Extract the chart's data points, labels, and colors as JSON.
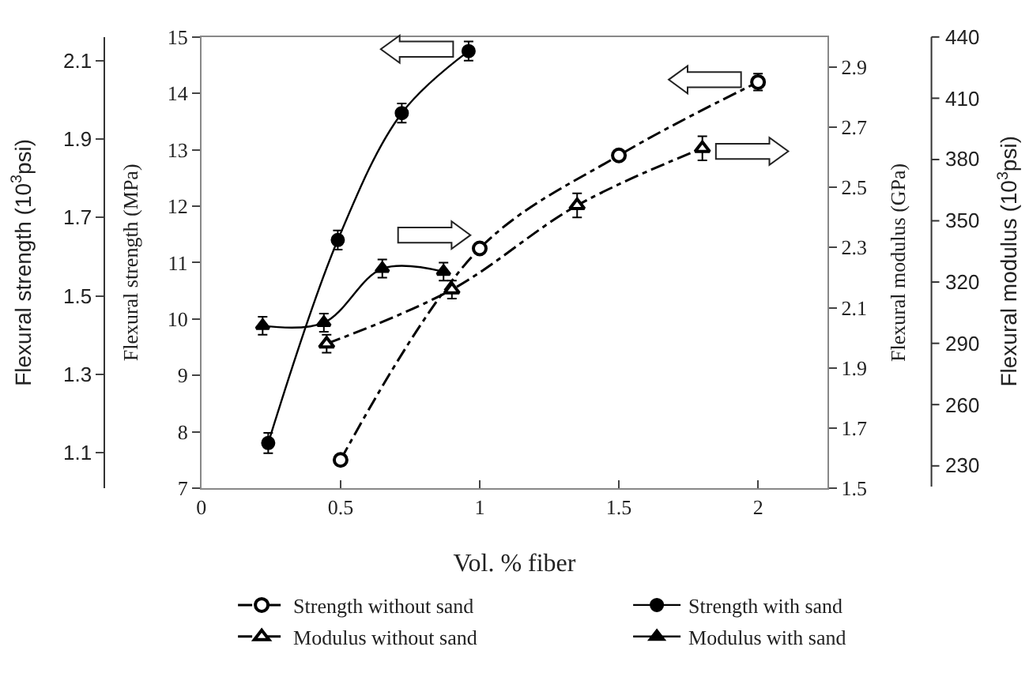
{
  "chart_data": {
    "type": "line",
    "xlabel": "Vol. % fiber",
    "ylabel": "Flexural strength (MPa)",
    "y2label": "Flexural modulus (GPa)",
    "y3label": "Flexural strength (10$^{3}$psi)",
    "xlim": [
      0,
      2.25
    ],
    "xticks": [
      0,
      0.5,
      1,
      1.5,
      2
    ],
    "ylim": [
      7,
      15
    ],
    "yticks": [
      7,
      8,
      9,
      10,
      11,
      12,
      13,
      14,
      15
    ],
    "y2lim": [
      1.5,
      3.0
    ],
    "y2ticks": [
      1.5,
      1.7,
      1.9,
      2.1,
      2.3,
      2.5,
      2.7,
      2.9
    ],
    "y3lim": [
      1.01,
      2.16
    ],
    "y3ticks": [
      1.1,
      1.3,
      1.5,
      1.7,
      1.9,
      2.1
    ],
    "annotations": [
      "Flexural modulus (10$^{3}$psi)",
      "440",
      "410",
      "380",
      "350",
      "320",
      "290",
      "260",
      "230"
    ],
    "legend": "bottom",
    "series": [
      {
        "name": "Strength without sand",
        "color": "#000000",
        "marker": "circle",
        "line_style": "dashed",
        "x": [
          0.5,
          1.0,
          1.5,
          2.0
        ],
        "values": [
          7.5,
          11.25,
          12.9,
          14.2
        ],
        "errors": [
          null,
          null,
          null,
          0.15
        ]
      },
      {
        "name": "Strength with sand",
        "color": "#000000",
        "marker": "circle",
        "line_style": "solid",
        "x": [
          0.24,
          0.49,
          0.72,
          0.96
        ],
        "values": [
          7.8,
          11.4,
          13.65,
          14.75
        ],
        "errors": [
          0.18,
          0.17,
          0.17,
          0.17
        ]
      },
      {
        "name": "Modulus without sand",
        "color": "#000000",
        "marker": "triangle",
        "line_style": "dashed",
        "axis": "y2",
        "x": [
          0.45,
          0.9,
          1.35,
          1.8
        ],
        "values": [
          1.98,
          2.16,
          2.44,
          2.63
        ],
        "errors": [
          0.03,
          0.03,
          0.04,
          0.04
        ]
      },
      {
        "name": "Modulus with sand",
        "color": "#000000",
        "marker": "triangle",
        "line_style": "solid",
        "axis": "y2",
        "x": [
          0.22,
          0.44,
          0.65,
          0.87
        ],
        "values": [
          2.04,
          2.05,
          2.23,
          2.22
        ],
        "errors": [
          0.03,
          0.03,
          0.03,
          0.03
        ]
      }
    ]
  }
}
